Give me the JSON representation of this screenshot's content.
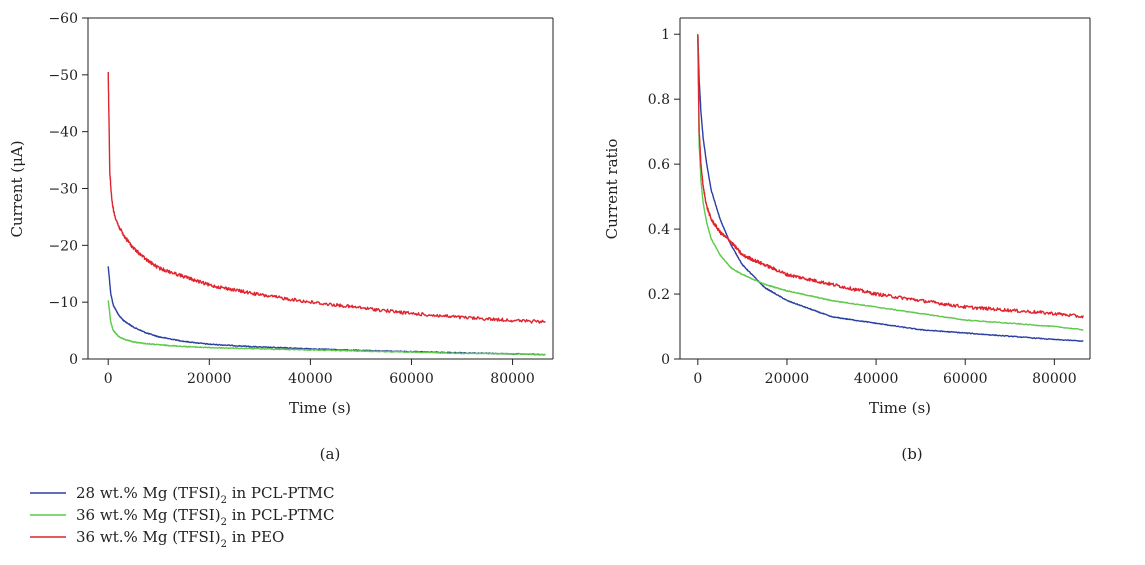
{
  "legend": [
    {
      "text": "28 wt.% Mg (TFSI)",
      "sub": "2",
      "suffix": " in PCL-PTMC",
      "color": "#2b3fa3"
    },
    {
      "text": "36 wt.% Mg (TFSI)",
      "sub": "2",
      "suffix": " in PCL-PTMC",
      "color": "#5ec94a"
    },
    {
      "text": "36 wt.% Mg (TFSI)",
      "sub": "2",
      "suffix": " in PEO",
      "color": "#e0242e"
    }
  ],
  "chart_data": [
    {
      "type": "line",
      "panel_label": "(a)",
      "xlabel": "Time (s)",
      "ylabel": "Current (μA)",
      "xlim": [
        -4000,
        88000
      ],
      "ylim": [
        0,
        -60
      ],
      "xticks": [
        0,
        20000,
        40000,
        60000,
        80000
      ],
      "yticks": [
        0,
        -10,
        -20,
        -30,
        -40,
        -50,
        -60
      ],
      "series": [
        {
          "name": "28 wt.% Mg (TFSI)2 in PCL-PTMC",
          "color": "#2b3fa3",
          "x": [
            0,
            500,
            1000,
            2000,
            3000,
            5000,
            7500,
            10000,
            15000,
            20000,
            30000,
            40000,
            50000,
            60000,
            70000,
            80000,
            86500
          ],
          "y": [
            -16.3,
            -11.5,
            -9.5,
            -7.8,
            -6.8,
            -5.6,
            -4.6,
            -3.9,
            -3.1,
            -2.6,
            -2.1,
            -1.8,
            -1.5,
            -1.3,
            -1.1,
            -0.9,
            -0.8
          ]
        },
        {
          "name": "36 wt.% Mg (TFSI)2 in PCL-PTMC",
          "color": "#5ec94a",
          "x": [
            0,
            500,
            1000,
            2000,
            3000,
            5000,
            7500,
            10000,
            15000,
            20000,
            30000,
            40000,
            50000,
            60000,
            70000,
            80000,
            86500
          ],
          "y": [
            -10.3,
            -6.5,
            -5.0,
            -4.0,
            -3.5,
            -3.0,
            -2.7,
            -2.5,
            -2.2,
            -2.0,
            -1.8,
            -1.6,
            -1.4,
            -1.2,
            -1.0,
            -0.9,
            -0.8
          ]
        },
        {
          "name": "36 wt.% Mg (TFSI)2 in PEO",
          "color": "#e0242e",
          "x": [
            0,
            300,
            700,
            1200,
            2000,
            3000,
            5000,
            7500,
            10000,
            15000,
            20000,
            30000,
            40000,
            50000,
            60000,
            70000,
            80000,
            86500
          ],
          "y": [
            -50.5,
            -33.0,
            -28.0,
            -25.5,
            -23.5,
            -21.8,
            -19.5,
            -17.5,
            -16.0,
            -14.5,
            -13.0,
            -11.3,
            -10.0,
            -9.0,
            -8.0,
            -7.3,
            -6.8,
            -6.5
          ]
        }
      ]
    },
    {
      "type": "line",
      "panel_label": "(b)",
      "xlabel": "Time (s)",
      "ylabel": "Current ratio",
      "xlim": [
        -4000,
        88000
      ],
      "ylim": [
        0,
        1.05
      ],
      "xticks": [
        0,
        20000,
        40000,
        60000,
        80000
      ],
      "yticks": [
        0.0,
        0.2,
        0.4,
        0.6,
        0.8,
        1.0
      ],
      "series": [
        {
          "name": "28 wt.% Mg (TFSI)2 in PCL-PTMC",
          "color": "#2b3fa3",
          "x": [
            0,
            300,
            700,
            1200,
            2000,
            3000,
            5000,
            7500,
            10000,
            15000,
            20000,
            30000,
            40000,
            50000,
            60000,
            70000,
            80000,
            86500
          ],
          "y": [
            1.0,
            0.86,
            0.76,
            0.68,
            0.6,
            0.52,
            0.43,
            0.35,
            0.29,
            0.22,
            0.18,
            0.13,
            0.11,
            0.09,
            0.08,
            0.07,
            0.06,
            0.055
          ]
        },
        {
          "name": "36 wt.% Mg (TFSI)2 in PCL-PTMC",
          "color": "#5ec94a",
          "x": [
            0,
            300,
            700,
            1200,
            2000,
            3000,
            5000,
            7500,
            10000,
            15000,
            20000,
            30000,
            40000,
            50000,
            60000,
            70000,
            80000,
            86500
          ],
          "y": [
            1.0,
            0.66,
            0.55,
            0.48,
            0.42,
            0.37,
            0.32,
            0.28,
            0.26,
            0.23,
            0.21,
            0.18,
            0.16,
            0.14,
            0.12,
            0.11,
            0.1,
            0.09
          ]
        },
        {
          "name": "36 wt.% Mg (TFSI)2 in PEO",
          "color": "#e0242e",
          "x": [
            0,
            300,
            700,
            1200,
            2000,
            3000,
            5000,
            7500,
            10000,
            15000,
            20000,
            30000,
            40000,
            50000,
            60000,
            70000,
            80000,
            86500
          ],
          "y": [
            1.0,
            0.7,
            0.6,
            0.53,
            0.47,
            0.43,
            0.39,
            0.36,
            0.32,
            0.29,
            0.26,
            0.23,
            0.2,
            0.18,
            0.16,
            0.15,
            0.14,
            0.13
          ]
        }
      ]
    }
  ]
}
